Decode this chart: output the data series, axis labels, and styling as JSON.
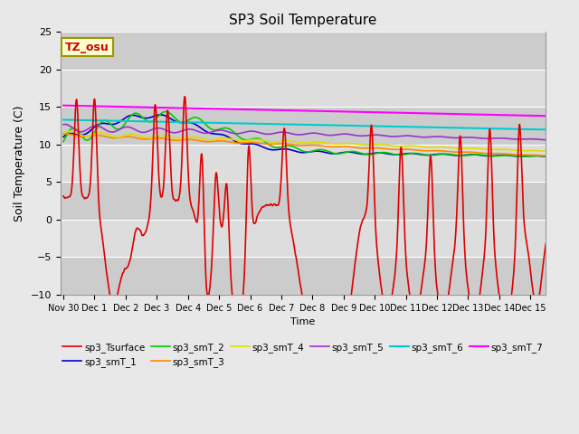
{
  "title": "SP3 Soil Temperature",
  "ylabel": "Soil Temperature (C)",
  "xlabel": "Time",
  "tz_label": "TZ_osu",
  "ylim": [
    -10,
    25
  ],
  "fig_facecolor": "#e8e8e8",
  "ax_facecolor": "#e0e0e0",
  "x_ticks_labels": [
    "Nov 30",
    "Dec 1",
    "Dec 2",
    "Dec 3",
    "Dec 4",
    "Dec 5",
    "Dec 6",
    "Dec 7",
    "Dec 8",
    "Dec 9",
    "Dec 10",
    "Dec 11",
    "Dec 12",
    "Dec 13",
    "Dec 14",
    "Dec 15"
  ],
  "legend_entries": [
    {
      "label": "sp3_Tsurface",
      "color": "#dd0000",
      "lw": 1.2
    },
    {
      "label": "sp3_smT_1",
      "color": "#0000cc",
      "lw": 1.2
    },
    {
      "label": "sp3_smT_2",
      "color": "#00cc00",
      "lw": 1.2
    },
    {
      "label": "sp3_smT_3",
      "color": "#ff8800",
      "lw": 1.2
    },
    {
      "label": "sp3_smT_4",
      "color": "#dddd00",
      "lw": 1.2
    },
    {
      "label": "sp3_smT_5",
      "color": "#9933cc",
      "lw": 1.2
    },
    {
      "label": "sp3_smT_6",
      "color": "#00cccc",
      "lw": 1.5
    },
    {
      "label": "sp3_smT_7",
      "color": "#ff00ff",
      "lw": 1.5
    }
  ]
}
